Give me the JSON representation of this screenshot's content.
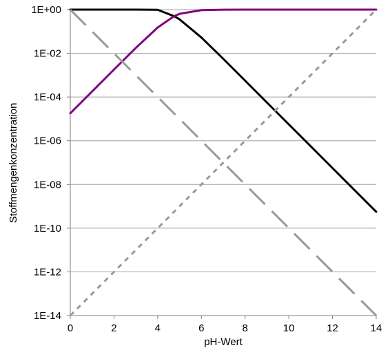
{
  "chart_data": {
    "type": "line",
    "title": "",
    "xlabel": "pH-Wert",
    "ylabel": "Stoffmengenkonzentration",
    "xlim": [
      0,
      14
    ],
    "ylim_log10": [
      -14,
      0
    ],
    "y_scale": "log",
    "grid": "horizontal",
    "legend": "none",
    "x_ticks": [
      "0",
      "2",
      "4",
      "6",
      "8",
      "10",
      "12",
      "14"
    ],
    "y_ticks": [
      "1E-14",
      "1E-12",
      "1E-10",
      "1E-08",
      "1E-06",
      "1E-04",
      "1E-02",
      "1E+00"
    ],
    "series": [
      {
        "style": "solid",
        "color": "#000000",
        "x": [
          0,
          1,
          2,
          3,
          4,
          4.75,
          5,
          6,
          7,
          8,
          9,
          10,
          11,
          12,
          13,
          14
        ],
        "y": [
          1.0,
          1.0,
          1.0,
          0.999,
          0.982,
          0.5,
          0.36,
          0.053,
          0.0056,
          0.00056,
          5.6e-05,
          5.6e-06,
          5.6e-07,
          5.6e-08,
          5.6e-09,
          5.6e-10
        ]
      },
      {
        "style": "solid",
        "color": "#800080",
        "x": [
          0,
          1,
          2,
          3,
          4,
          4.75,
          5,
          6,
          7,
          8,
          9,
          10,
          11,
          12,
          13,
          14
        ],
        "y": [
          1.8e-05,
          0.00018,
          0.0018,
          0.0177,
          0.152,
          0.5,
          0.64,
          0.947,
          0.994,
          0.9994,
          1.0,
          1.0,
          1.0,
          1.0,
          1.0,
          1.0
        ]
      },
      {
        "style": "long-dash",
        "color": "#999999",
        "x": [
          0,
          14
        ],
        "y": [
          1.0,
          1e-14
        ]
      },
      {
        "style": "short-dash",
        "color": "#999999",
        "x": [
          0,
          14
        ],
        "y": [
          1e-14,
          1.0
        ]
      }
    ],
    "colors": {
      "grid": "#a0a0a0",
      "axis": "#808080"
    }
  }
}
